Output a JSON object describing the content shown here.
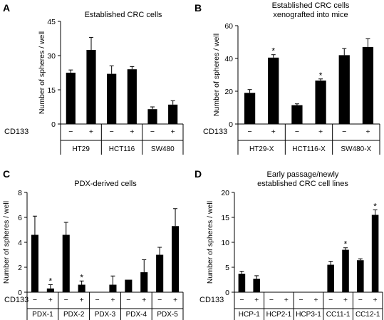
{
  "chart_data": [
    {
      "panel": "A",
      "type": "bar",
      "title_lines": [
        "Established CRC cells"
      ],
      "ylabel": "Number of spheres / well",
      "ylim": [
        0,
        45
      ],
      "yticks": [
        0,
        15,
        30,
        45
      ],
      "row_label": "CD133",
      "signs": [
        "−",
        "+"
      ],
      "groups": [
        "HT29",
        "HCT116",
        "SW480"
      ],
      "values": [
        22.5,
        32.5,
        22,
        24,
        6.5,
        8.5
      ],
      "errors": [
        1.2,
        5.5,
        3.5,
        1.2,
        1,
        1.7
      ],
      "significant": [
        false,
        false,
        false,
        false,
        false,
        false
      ]
    },
    {
      "panel": "B",
      "type": "bar",
      "title_lines": [
        "Established CRC cells",
        "xenografted into mice"
      ],
      "ylabel": "Number of spheres / well",
      "ylim": [
        0,
        60
      ],
      "yticks": [
        0,
        20,
        40,
        60
      ],
      "row_label": "CD133",
      "signs": [
        "−",
        "+"
      ],
      "groups": [
        "HT29-X",
        "HCT116-X",
        "SW480-X"
      ],
      "values": [
        19,
        40.5,
        11.5,
        26.5,
        42,
        47
      ],
      "errors": [
        2,
        1.8,
        0.8,
        1,
        4,
        5
      ],
      "significant": [
        false,
        true,
        false,
        true,
        false,
        false
      ]
    },
    {
      "panel": "C",
      "type": "bar",
      "title_lines": [
        "PDX-derived cells"
      ],
      "ylabel": "Number of spheres / well",
      "ylim": [
        0,
        8
      ],
      "yticks": [
        0,
        2,
        4,
        6,
        8
      ],
      "row_label": "CD133",
      "signs": [
        "−",
        "+"
      ],
      "groups": [
        "PDX-1",
        "PDX-2",
        "PDX-3",
        "PDX-4",
        "PDX-5"
      ],
      "values": [
        4.6,
        0.3,
        4.6,
        0.6,
        0,
        0.6,
        1.0,
        1.6,
        3.0,
        5.3
      ],
      "errors": [
        1.5,
        0.3,
        1.0,
        0.3,
        0,
        0.7,
        0,
        1.0,
        0.6,
        1.4
      ],
      "significant": [
        false,
        true,
        false,
        true,
        false,
        false,
        false,
        false,
        false,
        false
      ]
    },
    {
      "panel": "D",
      "type": "bar",
      "title_lines": [
        "Early passage/newly",
        "established CRC cell lines"
      ],
      "ylabel": "Number of spheres / well",
      "ylim": [
        0,
        20
      ],
      "yticks": [
        0,
        5,
        10,
        15,
        20
      ],
      "row_label": "CD133",
      "signs": [
        "−",
        "+"
      ],
      "groups": [
        "HCP-1",
        "HCP2-1",
        "HCP3-1",
        "CC11-1",
        "CC12-1"
      ],
      "values": [
        3.7,
        2.7,
        0,
        0,
        0,
        0,
        5.5,
        8.5,
        6.4,
        15.5
      ],
      "errors": [
        0.5,
        0.6,
        0,
        0,
        0,
        0,
        0.7,
        0.4,
        0.3,
        1.0
      ],
      "significant": [
        false,
        false,
        false,
        false,
        false,
        false,
        false,
        true,
        false,
        true
      ]
    }
  ]
}
